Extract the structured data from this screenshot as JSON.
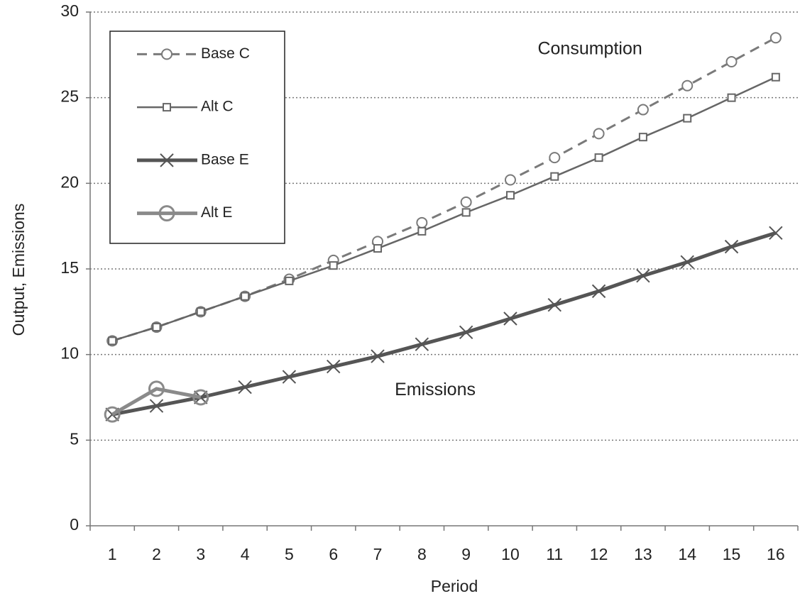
{
  "chart_data": {
    "type": "line",
    "x_label": "Period",
    "y_label": "Output, Emissions",
    "categories": [
      "1",
      "2",
      "3",
      "4",
      "5",
      "6",
      "7",
      "8",
      "9",
      "10",
      "11",
      "12",
      "13",
      "14",
      "15",
      "16"
    ],
    "series": [
      {
        "name": "Base C",
        "color": "#7a7a7a",
        "dash": true,
        "marker": "circle",
        "width": 3,
        "values": [
          10.8,
          11.6,
          12.5,
          13.4,
          14.4,
          15.5,
          16.6,
          17.7,
          18.9,
          20.2,
          21.5,
          22.9,
          24.3,
          25.7,
          27.1,
          28.5
        ]
      },
      {
        "name": "Alt C",
        "color": "#666666",
        "dash": false,
        "marker": "square",
        "width": 2.5,
        "values": [
          10.8,
          11.6,
          12.5,
          13.4,
          14.3,
          15.2,
          16.2,
          17.2,
          18.3,
          19.3,
          20.4,
          21.5,
          22.7,
          23.8,
          25.0,
          26.2
        ]
      },
      {
        "name": "Base E",
        "color": "#555555",
        "dash": false,
        "marker": "x",
        "width": 5,
        "values": [
          6.5,
          7.0,
          7.5,
          8.1,
          8.7,
          9.3,
          9.9,
          10.6,
          11.3,
          12.1,
          12.9,
          13.7,
          14.6,
          15.4,
          16.3,
          17.1
        ]
      },
      {
        "name": "Alt E",
        "color": "#8a8a8a",
        "dash": false,
        "marker": "bigcircle",
        "width": 5,
        "values": [
          6.5,
          8.0,
          7.5,
          null,
          null,
          null,
          null,
          null,
          null,
          null,
          null,
          null,
          null,
          null,
          null,
          null
        ]
      }
    ],
    "annotations": [
      {
        "text": "Consumption",
        "x": 11.8,
        "y": 27.8
      },
      {
        "text": "Emissions",
        "x": 8.3,
        "y": 7.9
      }
    ],
    "ylim": [
      0,
      30
    ],
    "yticks": [
      0,
      5,
      10,
      15,
      20,
      25,
      30
    ],
    "grid": true,
    "legend": "upper left"
  }
}
